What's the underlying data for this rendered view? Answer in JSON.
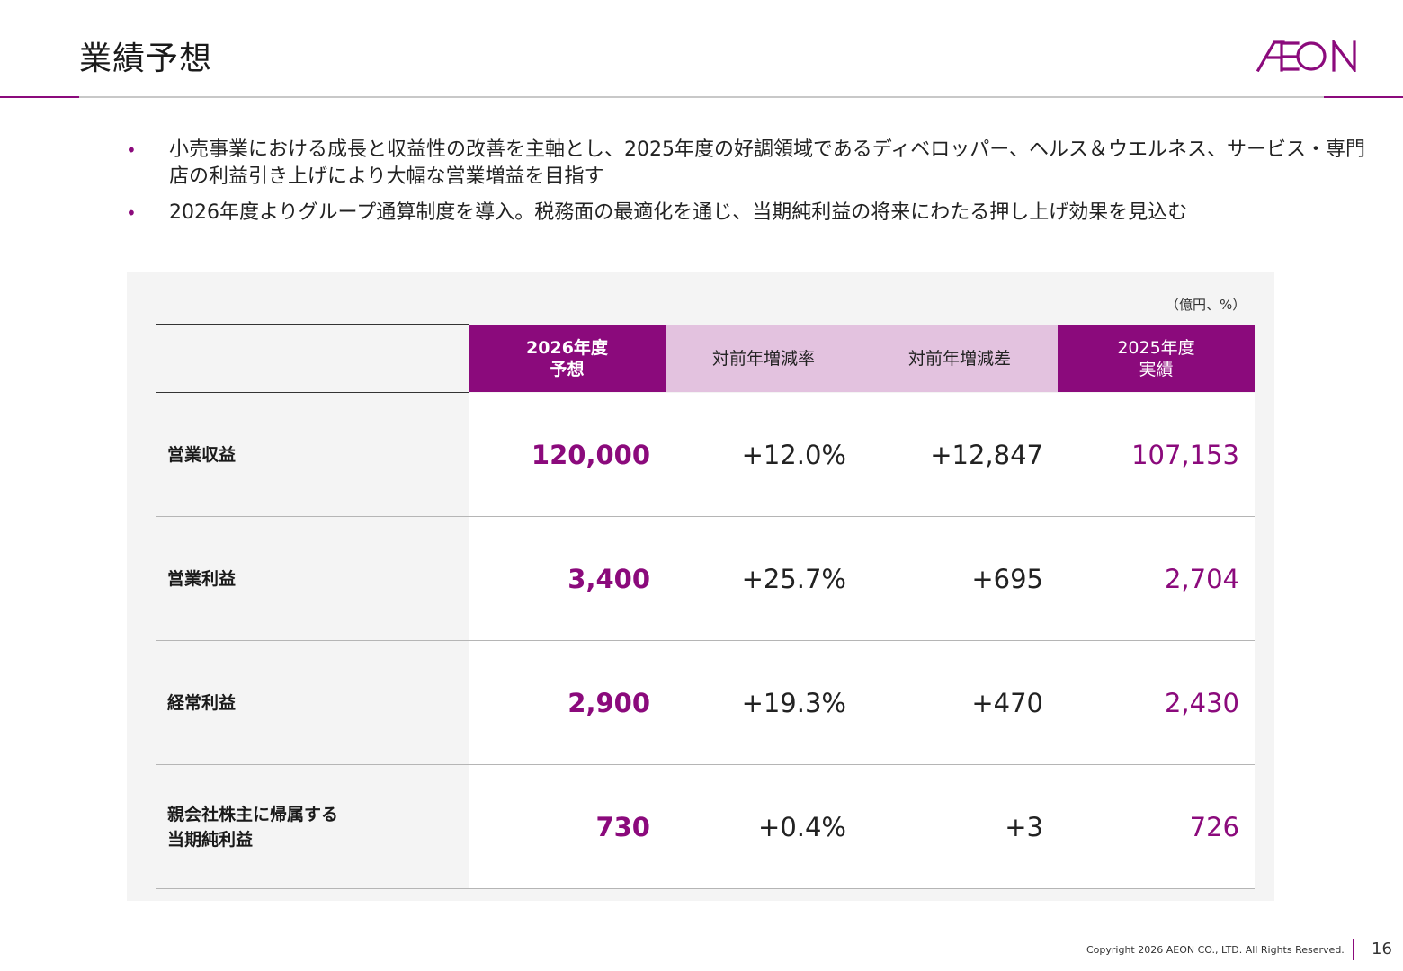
{
  "header": {
    "title": "業績予想",
    "logo_text": "AEON"
  },
  "bullets": [
    "小売事業における成長と収益性の改善を主軸とし、2025年度の好調領域であるディベロッパー、ヘルス＆ウエルネス、サービス・専門店の利益引き上げにより大幅な営業増益を目指す",
    "2026年度よりグループ通算制度を導入。税務面の最適化を通じ、当期純利益の将来にわたる押し上げ効果を見込む"
  ],
  "table": {
    "unit_note": "（億円、%）",
    "columns": [
      {
        "line1": "2026年度",
        "line2": "予想"
      },
      {
        "line1": "対前年増減率",
        "line2": ""
      },
      {
        "line1": "対前年増減差",
        "line2": ""
      },
      {
        "line1": "2025年度",
        "line2": "実績"
      }
    ],
    "rows": [
      {
        "label1": "営業収益",
        "label2": "",
        "forecast": "120,000",
        "rate": "+12.0%",
        "diff": "+12,847",
        "actual": "107,153"
      },
      {
        "label1": "営業利益",
        "label2": "",
        "forecast": "3,400",
        "rate": "+25.7%",
        "diff": "+695",
        "actual": "2,704"
      },
      {
        "label1": "経常利益",
        "label2": "",
        "forecast": "2,900",
        "rate": "+19.3%",
        "diff": "+470",
        "actual": "2,430"
      },
      {
        "label1": "親会社株主に帰属する",
        "label2": "当期純利益",
        "forecast": "730",
        "rate": "+0.4%",
        "diff": "+3",
        "actual": "726"
      }
    ]
  },
  "footer": {
    "copyright": "Copyright 2026 AEON CO., LTD. All Rights Reserved.",
    "page_number": "16"
  },
  "colors": {
    "brand_purple": "#8b0a7c",
    "light_purple": "#e3c2df",
    "panel_grey": "#f4f4f4"
  }
}
